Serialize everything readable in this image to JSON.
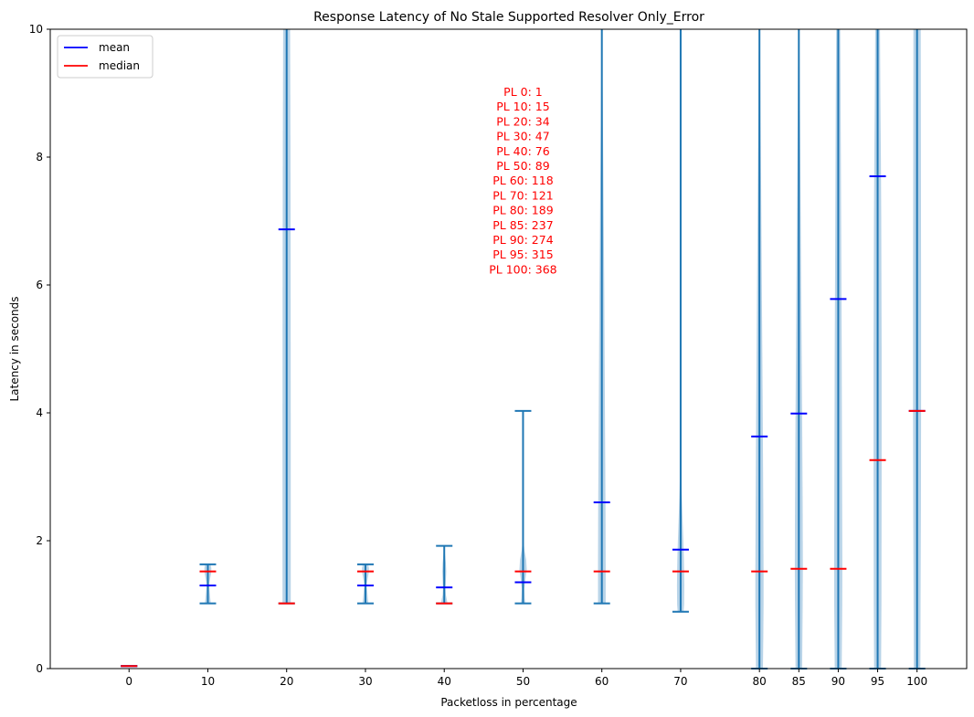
{
  "chart_data": {
    "type": "violin",
    "title": "Response Latency of No Stale Supported Resolver Only_Error",
    "xlabel": "Packetloss in percentage",
    "ylabel": "Latency in seconds",
    "ylim": [
      0,
      10
    ],
    "yticks": [
      0,
      2,
      4,
      6,
      8,
      10
    ],
    "x_positions": [
      0,
      10,
      20,
      30,
      40,
      50,
      60,
      70,
      80,
      85,
      90,
      95,
      100
    ],
    "xticks": [
      "0",
      "10",
      "20",
      "30",
      "40",
      "50",
      "60",
      "70",
      "80",
      "85",
      "90",
      "95",
      "100"
    ],
    "legend": {
      "position": "top-left",
      "entries": [
        {
          "label": "mean",
          "color": "#0000ff"
        },
        {
          "label": "median",
          "color": "#ff0000"
        }
      ]
    },
    "colors": {
      "body": "#b9d4e8",
      "line": "#1f77b4",
      "mean": "#0000ff",
      "median": "#ff0000"
    },
    "violins": [
      {
        "pl": 0,
        "min": 0.04,
        "max": 0.04,
        "mean": 0.04,
        "median": 0.04,
        "shape": []
      },
      {
        "pl": 10,
        "min": 1.02,
        "max": 1.63,
        "mean": 1.3,
        "median": 1.52,
        "shape": [
          [
            1.02,
            3.2
          ],
          [
            1.1,
            2.6
          ],
          [
            1.2,
            2.0
          ],
          [
            1.28,
            1.5
          ],
          [
            1.34,
            1.6
          ],
          [
            1.42,
            2.6
          ],
          [
            1.5,
            3.6
          ],
          [
            1.57,
            3.8
          ],
          [
            1.63,
            3.0
          ]
        ]
      },
      {
        "pl": 20,
        "min": 1.02,
        "max": 10,
        "mean": 6.87,
        "median": 1.02,
        "shape": [
          [
            1.02,
            4.5
          ],
          [
            2,
            4.5
          ],
          [
            4,
            4.5
          ],
          [
            6,
            4.4
          ],
          [
            8,
            4.2
          ],
          [
            10,
            3.8
          ]
        ]
      },
      {
        "pl": 30,
        "min": 1.02,
        "max": 1.63,
        "mean": 1.3,
        "median": 1.52,
        "shape": [
          [
            1.02,
            3.2
          ],
          [
            1.1,
            2.6
          ],
          [
            1.2,
            2.0
          ],
          [
            1.28,
            1.5
          ],
          [
            1.34,
            1.6
          ],
          [
            1.42,
            2.6
          ],
          [
            1.5,
            3.6
          ],
          [
            1.57,
            3.8
          ],
          [
            1.63,
            3.0
          ]
        ]
      },
      {
        "pl": 40,
        "min": 1.02,
        "max": 1.92,
        "mean": 1.27,
        "median": 1.02,
        "shape": [
          [
            1.02,
            3.6
          ],
          [
            1.08,
            2.8
          ],
          [
            1.15,
            1.8
          ],
          [
            1.25,
            1.4
          ],
          [
            1.38,
            1.8
          ],
          [
            1.52,
            2.2
          ],
          [
            1.65,
            1.8
          ],
          [
            1.8,
            0.8
          ],
          [
            1.92,
            0.1
          ]
        ]
      },
      {
        "pl": 50,
        "min": 1.02,
        "max": 4.03,
        "mean": 1.35,
        "median": 1.52,
        "shape": [
          [
            1.02,
            2.4
          ],
          [
            1.1,
            1.8
          ],
          [
            1.25,
            1.4
          ],
          [
            1.4,
            2.6
          ],
          [
            1.55,
            4.0
          ],
          [
            1.7,
            3.4
          ],
          [
            1.85,
            1.5
          ],
          [
            2.0,
            0.5
          ],
          [
            2.3,
            0.15
          ],
          [
            3.0,
            0.05
          ],
          [
            4.03,
            0.02
          ]
        ]
      },
      {
        "pl": 60,
        "min": 1.02,
        "max": 10,
        "mean": 2.6,
        "median": 1.52,
        "shape": [
          [
            1.02,
            4.2
          ],
          [
            1.6,
            4.2
          ],
          [
            2.5,
            4.0
          ],
          [
            4,
            3.4
          ],
          [
            6,
            2.6
          ],
          [
            8,
            1.5
          ],
          [
            9.5,
            0.6
          ],
          [
            10,
            0.3
          ]
        ]
      },
      {
        "pl": 70,
        "min": 0.89,
        "max": 10,
        "mean": 1.86,
        "median": 1.52,
        "shape": [
          [
            0.89,
            3.2
          ],
          [
            1.0,
            3.8
          ],
          [
            1.3,
            4.0
          ],
          [
            1.7,
            3.6
          ],
          [
            2.0,
            3.0
          ],
          [
            2.4,
            2.0
          ],
          [
            2.8,
            1.1
          ],
          [
            3.3,
            0.4
          ],
          [
            4.0,
            0.15
          ],
          [
            6,
            0.05
          ],
          [
            10,
            0.02
          ]
        ]
      },
      {
        "pl": 80,
        "min": 0.0,
        "max": 10,
        "mean": 3.63,
        "median": 1.52,
        "shape": [
          [
            0,
            3.8
          ],
          [
            0.5,
            4.2
          ],
          [
            1.0,
            4.5
          ],
          [
            1.5,
            4.5
          ],
          [
            2.5,
            4.2
          ],
          [
            4.0,
            3.6
          ],
          [
            6,
            2.6
          ],
          [
            8,
            1.6
          ],
          [
            9.5,
            0.8
          ],
          [
            10,
            0.5
          ]
        ]
      },
      {
        "pl": 85,
        "min": 0.0,
        "max": 10,
        "mean": 3.99,
        "median": 1.56,
        "shape": [
          [
            0,
            3.6
          ],
          [
            1.0,
            4.2
          ],
          [
            1.6,
            4.4
          ],
          [
            2.5,
            4.2
          ],
          [
            4,
            3.6
          ],
          [
            6,
            2.6
          ],
          [
            8,
            1.6
          ],
          [
            9.5,
            0.8
          ],
          [
            10,
            0.5
          ]
        ]
      },
      {
        "pl": 90,
        "min": 0.0,
        "max": 10,
        "mean": 5.78,
        "median": 1.56,
        "shape": [
          [
            0,
            3.8
          ],
          [
            1.0,
            4.4
          ],
          [
            1.6,
            4.5
          ],
          [
            3,
            4.2
          ],
          [
            5,
            3.8
          ],
          [
            7,
            3.2
          ],
          [
            9,
            2.6
          ],
          [
            10,
            2.2
          ]
        ]
      },
      {
        "pl": 95,
        "min": 0.0,
        "max": 10,
        "mean": 7.7,
        "median": 3.26,
        "shape": [
          [
            0,
            3.8
          ],
          [
            1.0,
            4.2
          ],
          [
            3,
            4.4
          ],
          [
            5,
            4.4
          ],
          [
            7,
            4.0
          ],
          [
            8,
            3.6
          ],
          [
            9,
            3.0
          ],
          [
            10,
            2.6
          ]
        ]
      },
      {
        "pl": 100,
        "min": 0.0,
        "max": 10,
        "mean": 4.03,
        "median": 4.03,
        "shape": [
          [
            0,
            3.6
          ],
          [
            1.0,
            3.8
          ],
          [
            2.5,
            4.2
          ],
          [
            4,
            4.4
          ],
          [
            6,
            4.4
          ],
          [
            8,
            4.2
          ],
          [
            10,
            4.0
          ]
        ]
      }
    ],
    "annotation_lines": [
      "PL 0: 1",
      "PL 10: 15",
      "PL 20: 34",
      "PL 30: 47",
      "PL 40: 76",
      "PL 50: 89",
      "PL 60: 118",
      "PL 70: 121",
      "PL 80: 189",
      "PL 85: 237",
      "PL 90: 274",
      "PL 95: 315",
      "PL 100: 368"
    ]
  }
}
